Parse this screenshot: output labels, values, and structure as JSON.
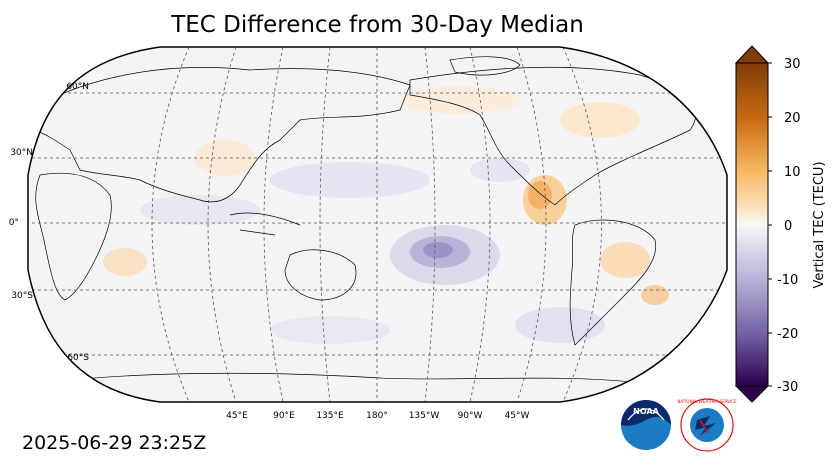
{
  "title": "TEC Difference from 30-Day Median",
  "timestamp": "2025-06-29 23:25Z",
  "map": {
    "projection": "Robinson",
    "center_longitude": "180°",
    "lat_labels": [
      "60°N",
      "30°N",
      "0°",
      "30°S",
      "60°S"
    ],
    "lon_labels": [
      "45°E",
      "90°E",
      "135°E",
      "180°",
      "135°W",
      "90°W",
      "45°W"
    ],
    "ocean_color": "#f4f4f6",
    "gridline_style": "dashed"
  },
  "colorbar": {
    "label": "Vertical TEC (TECU)",
    "ticks": [
      "30",
      "20",
      "10",
      "0",
      "-10",
      "-20",
      "-30"
    ],
    "min": -30,
    "max": 30,
    "colormap": "PuOr_r",
    "color_high": "#7f3b08",
    "color_zero": "#f7f7f7",
    "color_low": "#2d004b"
  },
  "logos": {
    "noaa": "NOAA",
    "nws": "NATIONAL WEATHER SERVICE"
  }
}
